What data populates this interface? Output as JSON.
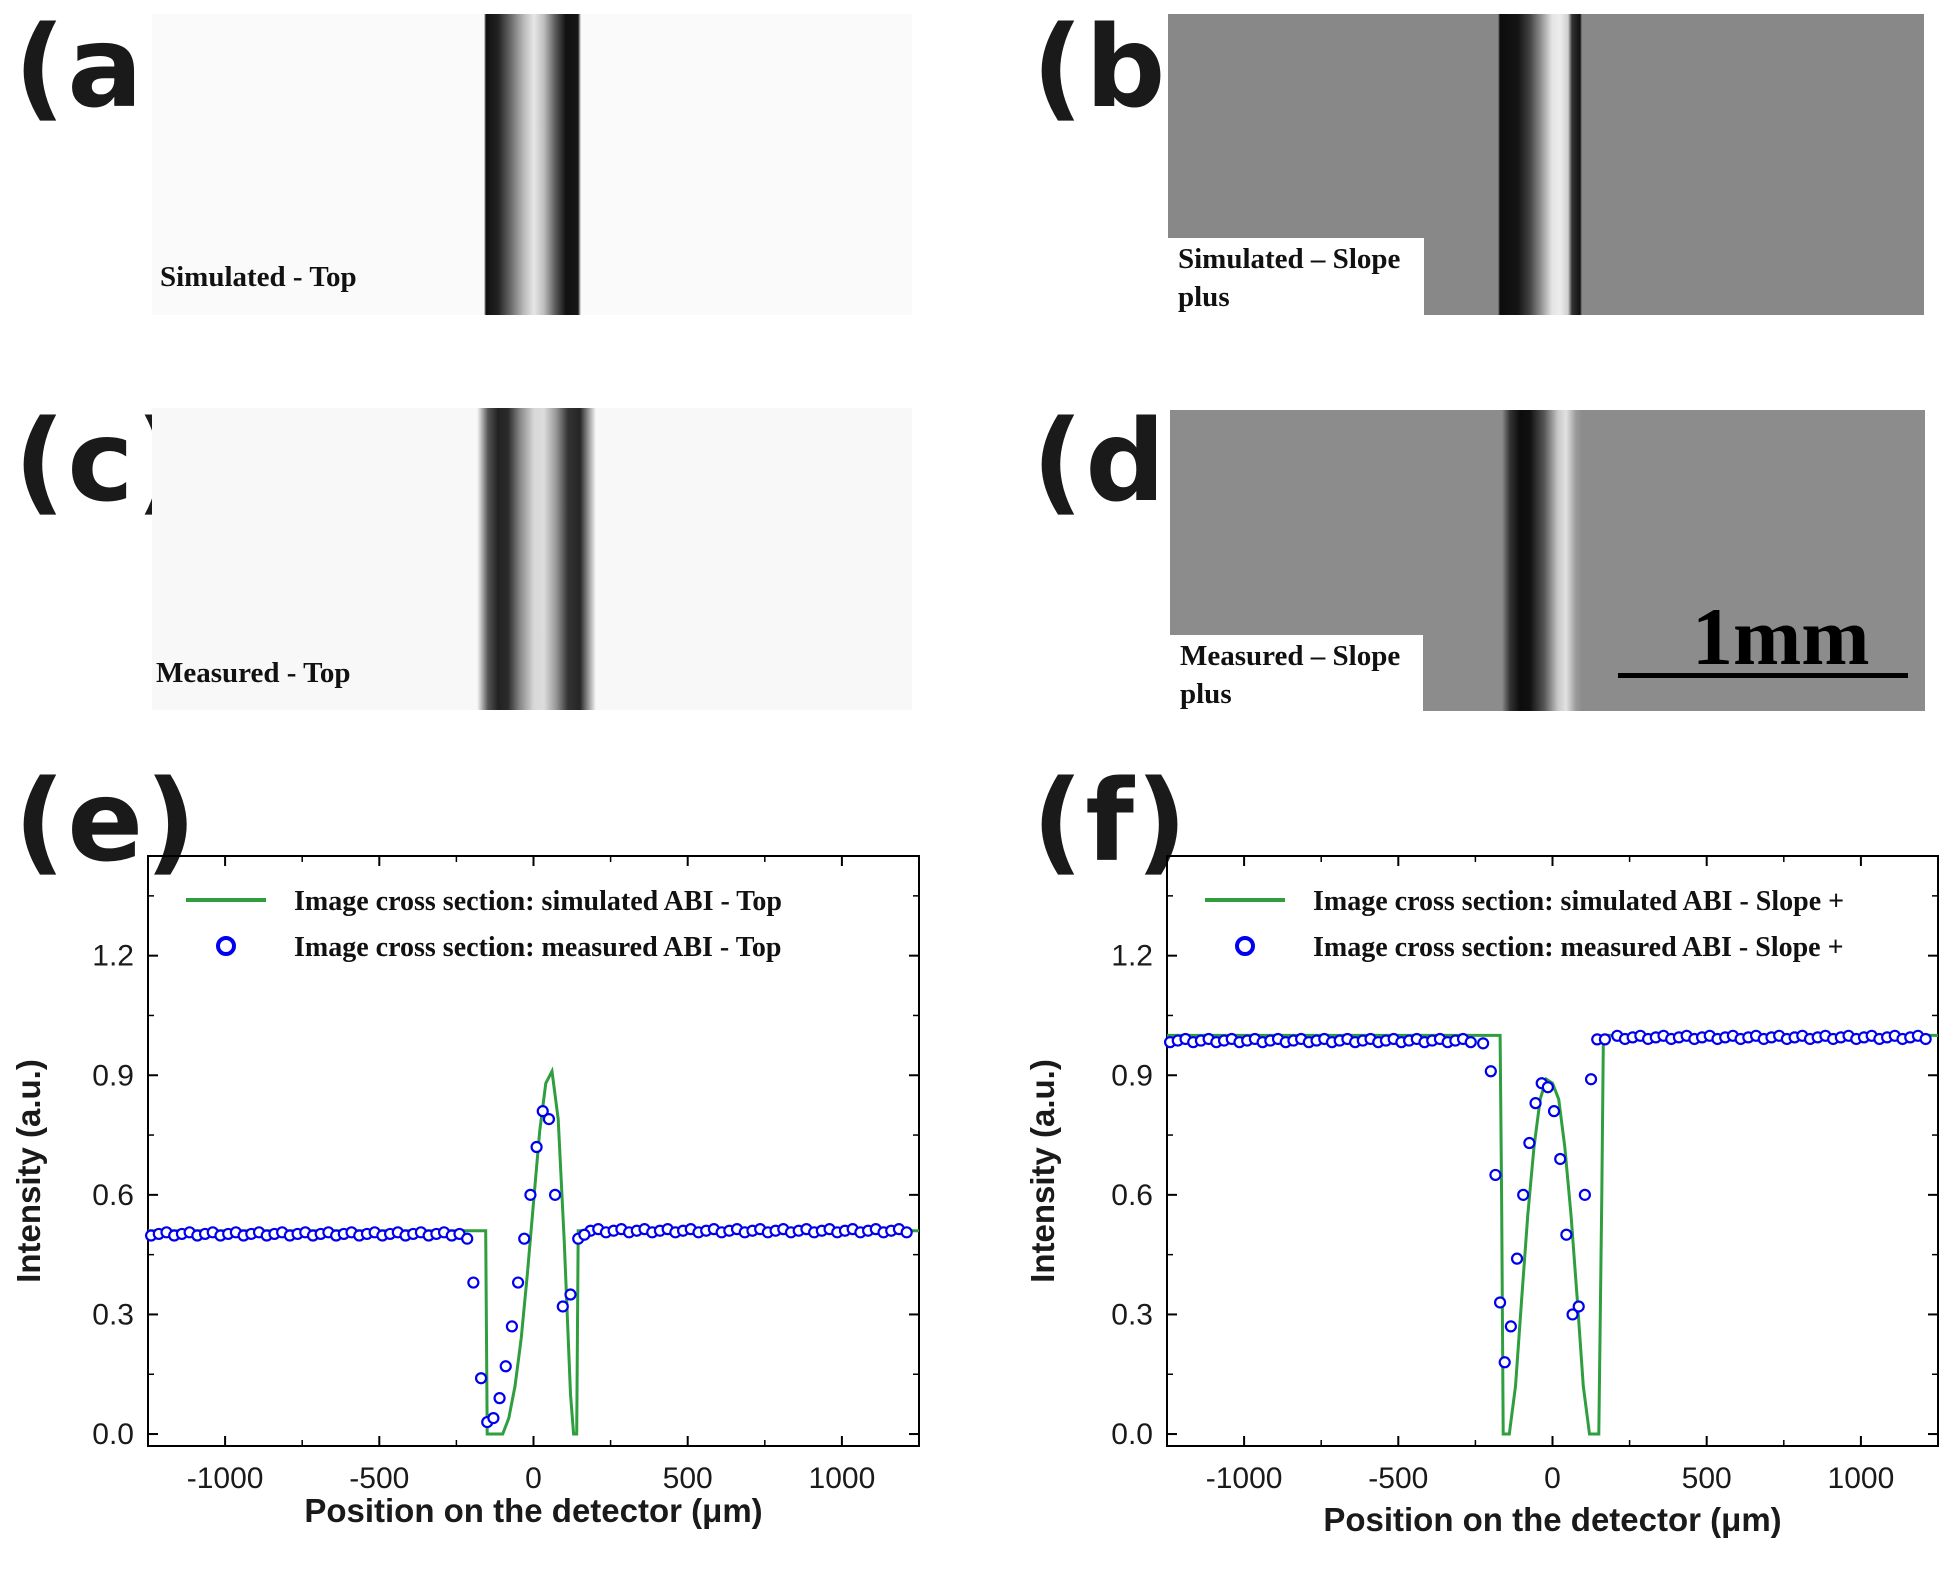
{
  "panels": {
    "a": {
      "letter": "(a)",
      "label": "Simulated - Top"
    },
    "b": {
      "letter": "(b)",
      "label_line1": "Simulated – Slope",
      "label_line2": "plus"
    },
    "c": {
      "letter": "(c)",
      "label": "Measured - Top"
    },
    "d": {
      "letter": "(d)",
      "label_line1": "Measured – Slope",
      "label_line2": "plus",
      "scale_label": "1mm"
    },
    "e": {
      "letter": "(e)"
    },
    "f": {
      "letter": "(f)"
    }
  },
  "colors": {
    "sim_line": "#2e9e3e",
    "measured_marker": "#0000ee",
    "text": "#1a1a1a"
  },
  "chart_data": [
    {
      "id": "e",
      "type": "line",
      "title": "",
      "xlabel": "Position on the detector (μm)",
      "ylabel": "Intensity (a.u.)",
      "xlim": [
        -1250,
        1250
      ],
      "ylim": [
        -0.03,
        1.45
      ],
      "x_ticks": [
        -1000,
        -500,
        0,
        500,
        1000
      ],
      "x_tick_labels": [
        "-1000",
        "-500",
        "0",
        "500",
        "1000"
      ],
      "y_ticks": [
        0.0,
        0.3,
        0.6,
        0.9,
        1.2
      ],
      "y_tick_labels": [
        "0.0",
        "0.3",
        "0.6",
        "0.9",
        "1.2"
      ],
      "legend_position": "top-left",
      "series": [
        {
          "name": "Image cross section: simulated ABI - Top",
          "kind": "line",
          "x": [
            -1250,
            -200,
            -190,
            -155,
            -150,
            -145,
            -140,
            -100,
            -80,
            -60,
            -40,
            -20,
            0,
            20,
            40,
            60,
            80,
            100,
            120,
            130,
            135,
            140,
            145,
            160,
            175,
            1250
          ],
          "y": [
            0.51,
            0.51,
            0.51,
            0.51,
            0.0,
            0.0,
            0.0,
            0.0,
            0.04,
            0.12,
            0.24,
            0.4,
            0.58,
            0.76,
            0.88,
            0.91,
            0.79,
            0.48,
            0.1,
            0.0,
            0.0,
            0.0,
            0.51,
            0.51,
            0.51,
            0.51
          ]
        },
        {
          "name": "Image cross section: measured ABI - Top",
          "kind": "markers",
          "baseline": 0.51,
          "baseline_x_range": [
            -1240,
            1220
          ],
          "baseline_step": 25,
          "dip_x": [
            -215,
            -195,
            -170,
            -150,
            -130,
            -110,
            -90,
            -70,
            -50,
            -30,
            -10,
            10,
            30,
            50,
            70,
            95,
            120,
            145,
            165
          ],
          "dip_y": [
            0.49,
            0.38,
            0.14,
            0.03,
            0.04,
            0.09,
            0.17,
            0.27,
            0.38,
            0.49,
            0.6,
            0.72,
            0.81,
            0.79,
            0.6,
            0.32,
            0.35,
            0.49,
            0.5
          ]
        }
      ]
    },
    {
      "id": "f",
      "type": "line",
      "title": "",
      "xlabel": "Position on the detector (μm)",
      "ylabel": "Intensity (a.u.)",
      "xlim": [
        -1250,
        1250
      ],
      "ylim": [
        -0.03,
        1.45
      ],
      "x_ticks": [
        -1000,
        -500,
        0,
        500,
        1000
      ],
      "x_tick_labels": [
        "-1000",
        "-500",
        "0",
        "500",
        "1000"
      ],
      "y_ticks": [
        0.0,
        0.3,
        0.6,
        0.9,
        1.2
      ],
      "y_tick_labels": [
        "0.0",
        "0.3",
        "0.6",
        "0.9",
        "1.2"
      ],
      "legend_position": "top-left",
      "series": [
        {
          "name": "Image cross section: simulated ABI - Slope +",
          "kind": "line",
          "x": [
            -1250,
            -170,
            -165,
            -160,
            -150,
            -140,
            -120,
            -100,
            -80,
            -60,
            -40,
            -20,
            0,
            20,
            40,
            60,
            80,
            100,
            120,
            140,
            150,
            160,
            165,
            170,
            1250
          ],
          "y": [
            1.0,
            1.0,
            0.6,
            0.0,
            0.0,
            0.0,
            0.12,
            0.34,
            0.55,
            0.72,
            0.84,
            0.89,
            0.88,
            0.84,
            0.72,
            0.55,
            0.34,
            0.12,
            0.0,
            0.0,
            0.0,
            0.6,
            1.0,
            1.0,
            1.0
          ]
        },
        {
          "name": "Image cross section: measured ABI - Slope +",
          "kind": "markers",
          "baseline": 0.995,
          "baseline_x_range": [
            -1240,
            1230
          ],
          "baseline_step": 25,
          "dip_x": [
            -225,
            -200,
            -185,
            -170,
            -155,
            -135,
            -115,
            -95,
            -75,
            -55,
            -35,
            -15,
            5,
            25,
            45,
            65,
            85,
            105,
            125,
            145,
            170
          ],
          "dip_y": [
            0.98,
            0.91,
            0.65,
            0.33,
            0.18,
            0.27,
            0.44,
            0.6,
            0.73,
            0.83,
            0.88,
            0.87,
            0.81,
            0.69,
            0.5,
            0.3,
            0.32,
            0.6,
            0.89,
            0.99,
            0.99
          ]
        }
      ]
    }
  ]
}
